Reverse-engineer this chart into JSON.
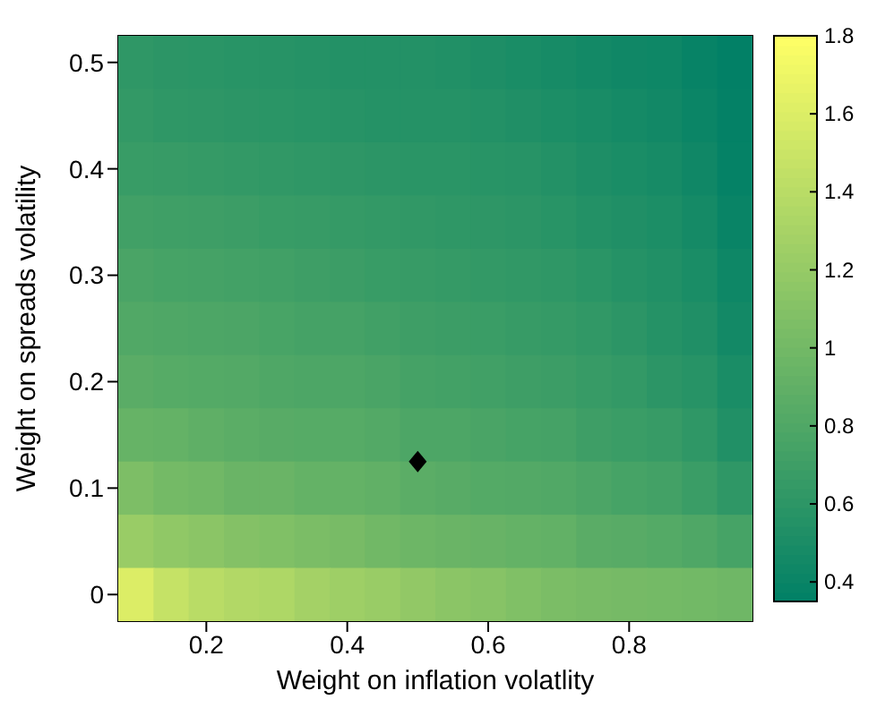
{
  "chart_data": {
    "type": "heatmap",
    "xlabel": "Weight on inflation volatlity",
    "ylabel": "Weight on spreads volatility",
    "categories": [
      null,
      null,
      "0.2",
      null,
      null,
      null,
      "0.4",
      null,
      null,
      null,
      "0.6",
      null,
      null,
      null,
      "0.8",
      null,
      null,
      null
    ],
    "y_categories": [
      "0.5",
      null,
      "0.4",
      null,
      "0.3",
      null,
      "0.2",
      null,
      "0.1",
      null,
      "0"
    ],
    "cells": [
      [
        0.62,
        0.6,
        0.59,
        0.58,
        0.57,
        0.56,
        0.55,
        0.55,
        0.55,
        0.54,
        0.52,
        0.5,
        0.48,
        0.46,
        0.44,
        0.43,
        0.39,
        0.36
      ],
      [
        0.64,
        0.62,
        0.61,
        0.6,
        0.59,
        0.58,
        0.57,
        0.56,
        0.56,
        0.56,
        0.55,
        0.53,
        0.51,
        0.49,
        0.47,
        0.45,
        0.41,
        0.37
      ],
      [
        0.67,
        0.66,
        0.65,
        0.64,
        0.63,
        0.62,
        0.61,
        0.6,
        0.59,
        0.59,
        0.58,
        0.57,
        0.55,
        0.52,
        0.5,
        0.48,
        0.44,
        0.38
      ],
      [
        0.72,
        0.71,
        0.7,
        0.69,
        0.67,
        0.66,
        0.65,
        0.64,
        0.63,
        0.62,
        0.61,
        0.6,
        0.58,
        0.55,
        0.53,
        0.51,
        0.47,
        0.4
      ],
      [
        0.77,
        0.75,
        0.74,
        0.73,
        0.72,
        0.7,
        0.69,
        0.67,
        0.66,
        0.65,
        0.64,
        0.63,
        0.62,
        0.59,
        0.56,
        0.54,
        0.5,
        0.43
      ],
      [
        0.81,
        0.8,
        0.79,
        0.78,
        0.76,
        0.74,
        0.74,
        0.72,
        0.7,
        0.69,
        0.68,
        0.66,
        0.65,
        0.63,
        0.6,
        0.56,
        0.53,
        0.46
      ],
      [
        0.86,
        0.84,
        0.83,
        0.82,
        0.8,
        0.79,
        0.79,
        0.77,
        0.74,
        0.73,
        0.72,
        0.7,
        0.69,
        0.66,
        0.64,
        0.6,
        0.57,
        0.5
      ],
      [
        0.93,
        0.92,
        0.89,
        0.87,
        0.85,
        0.84,
        0.84,
        0.82,
        0.79,
        0.79,
        0.77,
        0.75,
        0.74,
        0.7,
        0.68,
        0.66,
        0.62,
        0.54
      ],
      [
        1.06,
        1.01,
        0.99,
        0.95,
        0.95,
        0.92,
        0.92,
        0.9,
        0.87,
        0.85,
        0.83,
        0.82,
        0.81,
        0.78,
        0.75,
        0.73,
        0.68,
        0.62
      ],
      [
        1.22,
        1.17,
        1.14,
        1.1,
        1.08,
        1.05,
        1.03,
        0.99,
        0.97,
        0.95,
        0.94,
        0.92,
        0.91,
        0.86,
        0.85,
        0.83,
        0.8,
        0.75
      ],
      [
        1.6,
        1.47,
        1.4,
        1.36,
        1.34,
        1.28,
        1.25,
        1.22,
        1.18,
        1.14,
        1.12,
        1.08,
        1.05,
        1.03,
        1.02,
        1.01,
        1.0,
        0.98
      ]
    ],
    "clim": [
      0.35,
      1.8
    ],
    "cticks": [
      0.4,
      0.6,
      0.8,
      1,
      1.2,
      1.4,
      1.6,
      1.8
    ]
  }
}
